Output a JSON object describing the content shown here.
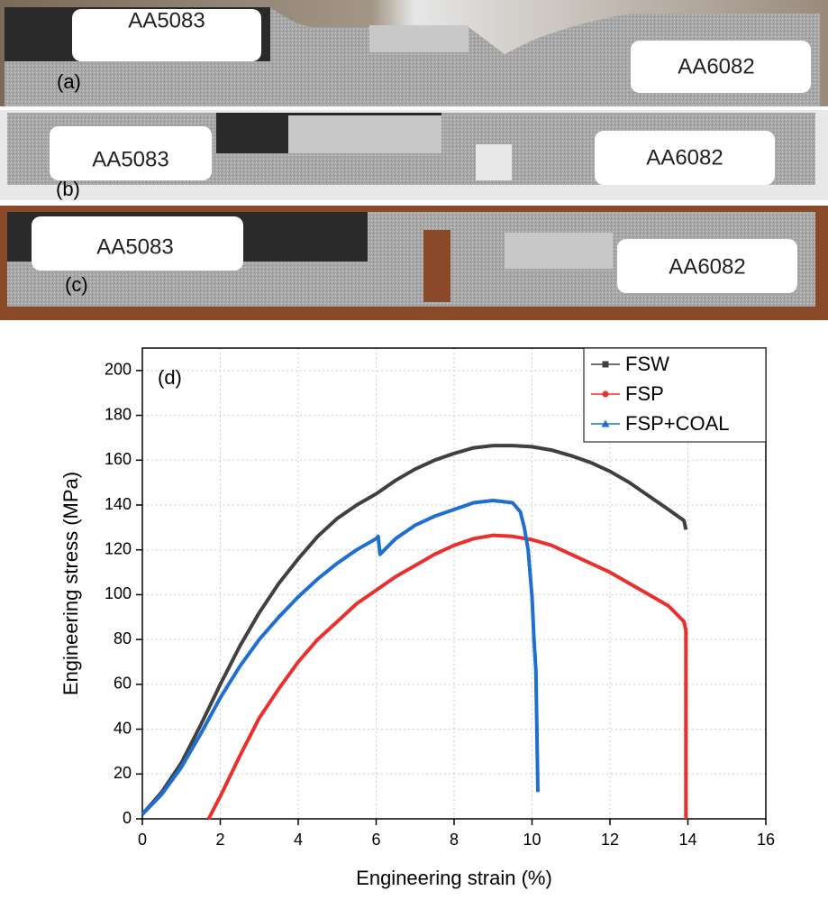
{
  "photos": [
    {
      "panel": "(a)",
      "left_label": "AA5083",
      "right_label": "AA6082"
    },
    {
      "panel": "(b)",
      "left_label": "AA5083",
      "right_label": "AA6082"
    },
    {
      "panel": "(c)",
      "left_label": "AA5083",
      "right_label": "AA6082"
    }
  ],
  "chart_data": {
    "type": "line",
    "annotation": "(d)",
    "x_label": "Engineering strain (%)",
    "y_label": "Engineering stress (MPa)",
    "xlim": [
      0,
      16
    ],
    "ylim": [
      0,
      210
    ],
    "xticks": [
      0,
      2,
      4,
      6,
      8,
      10,
      12,
      14,
      16
    ],
    "yticks": [
      0,
      20,
      40,
      60,
      80,
      100,
      120,
      140,
      160,
      180,
      200
    ],
    "grid": true,
    "legend": "top-right",
    "series": [
      {
        "name": "FSW",
        "color": "#404040",
        "marker": "square",
        "x": [
          0,
          0.5,
          1,
          1.5,
          2,
          2.5,
          3,
          3.5,
          4,
          4.5,
          5,
          5.5,
          6,
          6.5,
          7,
          7.5,
          8,
          8.5,
          9,
          9.5,
          10,
          10.5,
          11,
          11.5,
          12,
          12.5,
          13,
          13.5,
          13.9,
          13.95
        ],
        "values": [
          2,
          12,
          25,
          42,
          60,
          77,
          92,
          105,
          116,
          126,
          134,
          140,
          145,
          151,
          156,
          160,
          163,
          165.5,
          166.5,
          166.5,
          166,
          164.5,
          162,
          159,
          155,
          150,
          144,
          138,
          133,
          129
        ]
      },
      {
        "name": "FSP",
        "color": "#e8312f",
        "marker": "circle",
        "x": [
          1.7,
          2,
          2.5,
          3,
          3.5,
          4,
          4.5,
          5,
          5.5,
          6,
          6.5,
          7,
          7.5,
          8,
          8.5,
          9,
          9.5,
          10,
          10.5,
          11,
          11.5,
          12,
          12.5,
          13,
          13.5,
          13.9,
          13.95,
          13.95
        ],
        "values": [
          0,
          10,
          28,
          45,
          58,
          70,
          80,
          88,
          96,
          102,
          108,
          113,
          118,
          122,
          125,
          126.5,
          126,
          124.5,
          122,
          118,
          114,
          110,
          105,
          100,
          95,
          88,
          84,
          0
        ]
      },
      {
        "name": "FSP+COAL",
        "color": "#1f6fd1",
        "marker": "triangle",
        "x": [
          0,
          0.5,
          1,
          1.5,
          2,
          2.5,
          3,
          3.5,
          4,
          4.5,
          5,
          5.5,
          6,
          6.05,
          6.1,
          6.5,
          7,
          7.5,
          8,
          8.5,
          9,
          9.5,
          9.7,
          9.8,
          9.9,
          10,
          10.05,
          10.1,
          10.15
        ],
        "values": [
          2,
          11,
          23,
          38,
          54,
          68,
          80,
          90,
          99,
          107,
          114,
          120,
          125,
          126,
          118,
          125,
          131,
          135,
          138,
          141,
          142,
          141,
          137,
          130,
          120,
          99,
          80,
          66,
          12
        ]
      }
    ]
  }
}
